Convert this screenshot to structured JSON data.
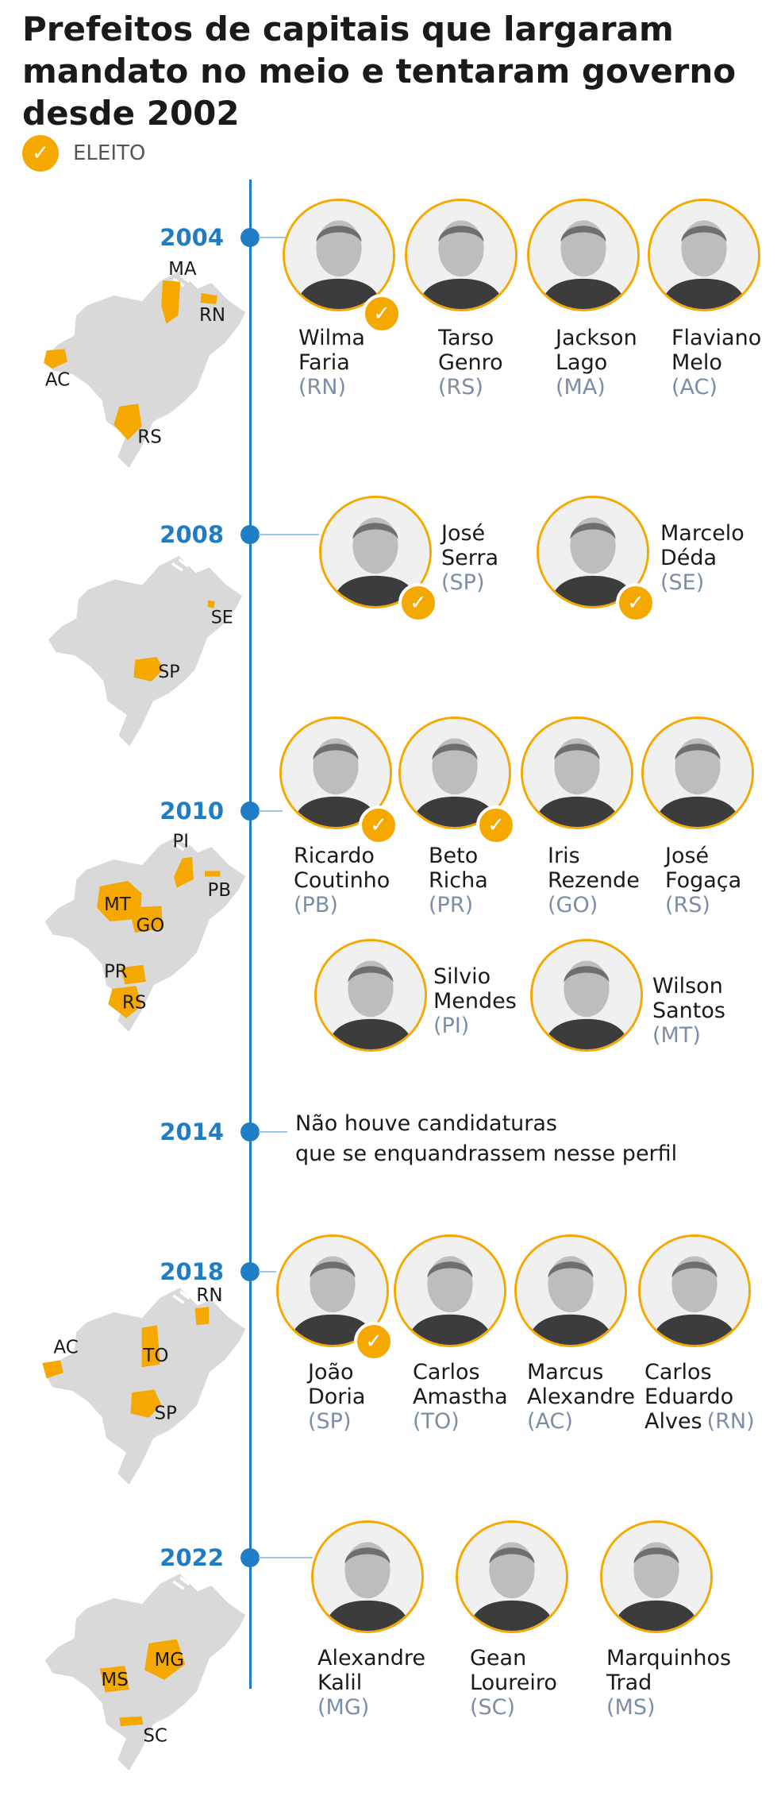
{
  "title_lines": [
    "Prefeitos de capitais que largaram",
    "mandato no meio e tentaram governo",
    "desde 2002"
  ],
  "legend": {
    "label": "ELEITO",
    "icon": "check-icon"
  },
  "colors": {
    "accent": "#f5a800",
    "axis": "#1e7dc4",
    "state_label": "#7a8ea8",
    "map": "#d9d9d9"
  },
  "periods": [
    {
      "year": "2004",
      "map_labels": [
        "MA",
        "RN",
        "AC",
        "RS"
      ],
      "candidates": [
        {
          "first": "Wilma",
          "last": "Faria",
          "state": "(RN)",
          "elected": true
        },
        {
          "first": "Tarso",
          "last": "Genro",
          "state": "(RS)",
          "elected": false
        },
        {
          "first": "Jackson",
          "last": "Lago",
          "state": "(MA)",
          "elected": false
        },
        {
          "first": "Flaviano",
          "last": "Melo",
          "state": "(AC)",
          "elected": false
        }
      ]
    },
    {
      "year": "2008",
      "map_labels": [
        "SE",
        "SP"
      ],
      "candidates": [
        {
          "first": "José",
          "last": "Serra",
          "state": "(SP)",
          "elected": true
        },
        {
          "first": "Marcelo",
          "last": "Déda",
          "state": "(SE)",
          "elected": true
        }
      ]
    },
    {
      "year": "2010",
      "map_labels": [
        "PI",
        "PB",
        "MT",
        "GO",
        "PR",
        "RS"
      ],
      "candidates": [
        {
          "first": "Ricardo",
          "last": "Coutinho",
          "state": "(PB)",
          "elected": true
        },
        {
          "first": "Beto",
          "last": "Richa",
          "state": "(PR)",
          "elected": true
        },
        {
          "first": "Iris",
          "last": "Rezende",
          "state": "(GO)",
          "elected": false
        },
        {
          "first": "José",
          "last": "Fogaça",
          "state": "(RS)",
          "elected": false
        },
        {
          "first": "Silvio",
          "last": "Mendes",
          "state": "(PI)",
          "elected": false
        },
        {
          "first": "Wilson",
          "last": "Santos",
          "state": "(MT)",
          "elected": false
        }
      ]
    },
    {
      "year": "2014",
      "note_lines": [
        "Não houve candidaturas",
        "que se enquandrassem nesse perfil"
      ]
    },
    {
      "year": "2018",
      "map_labels": [
        "RN",
        "AC",
        "TO",
        "SP"
      ],
      "candidates": [
        {
          "first": "João",
          "last": "Doria",
          "state": "(SP)",
          "elected": true
        },
        {
          "first": "Carlos",
          "last": "Amastha",
          "state": "(TO)",
          "elected": false
        },
        {
          "first": "Marcus",
          "last": "Alexandre",
          "state": "(AC)",
          "elected": false
        },
        {
          "first": "Carlos",
          "last": "Eduardo",
          "last2": "Alves",
          "state": "(RN)",
          "elected": false
        }
      ]
    },
    {
      "year": "2022",
      "map_labels": [
        "MS",
        "MG",
        "SC"
      ],
      "candidates": [
        {
          "first": "Alexandre",
          "last": "Kalil",
          "state": "(MG)",
          "elected": false
        },
        {
          "first": "Gean",
          "last": "Loureiro",
          "state": "(SC)",
          "elected": false
        },
        {
          "first": "Marquinhos",
          "last": "Trad",
          "state": "(MS)",
          "elected": false
        }
      ]
    }
  ]
}
